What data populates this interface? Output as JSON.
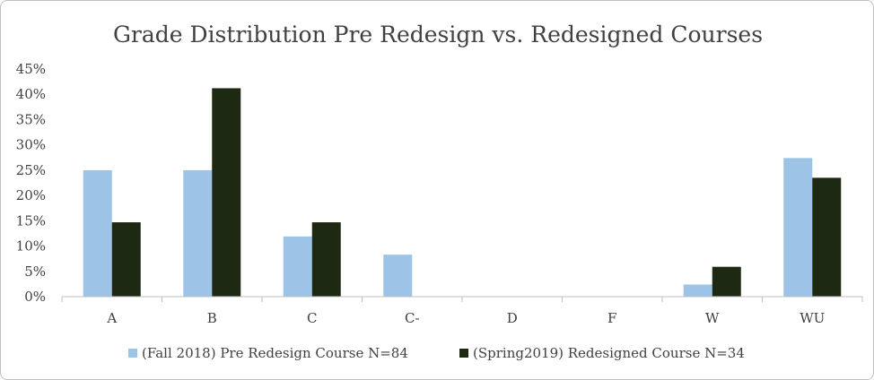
{
  "chart_data": {
    "type": "bar",
    "title": "Grade Distribution Pre Redesign vs. Redesigned Courses",
    "xlabel": "",
    "ylabel": "",
    "categories": [
      "A",
      "B",
      "C",
      "C-",
      "D",
      "F",
      "W",
      "WU"
    ],
    "ylim": [
      0,
      45
    ],
    "yticks": [
      "0%",
      "5%",
      "10%",
      "15%",
      "20%",
      "25%",
      "30%",
      "35%",
      "40%",
      "45%"
    ],
    "grid": false,
    "legend_position": "bottom",
    "series": [
      {
        "name": "(Fall 2018) Pre Redesign Course N=84",
        "color": "#9dc3e6",
        "values": [
          25.0,
          25.0,
          11.9,
          8.3,
          0,
          0,
          2.4,
          27.4
        ]
      },
      {
        "name": "(Spring2019) Redesigned Course N=34",
        "color": "#1e2914",
        "values": [
          14.7,
          41.2,
          14.7,
          0,
          0,
          0,
          5.9,
          23.5
        ]
      }
    ]
  }
}
